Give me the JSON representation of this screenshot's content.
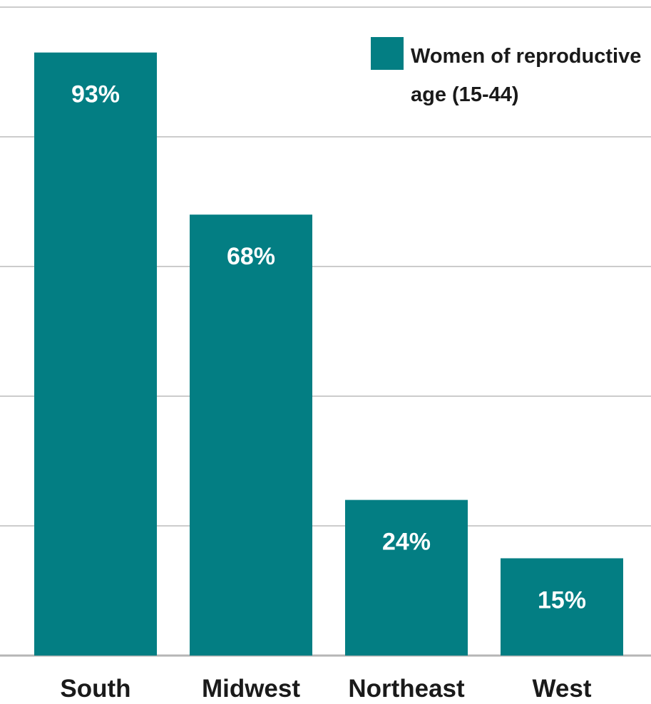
{
  "chart_data": {
    "type": "bar",
    "categories": [
      "South",
      "Midwest",
      "Northeast",
      "West"
    ],
    "series": [
      {
        "name": "Women of reproductive age (15-44)",
        "values": [
          93,
          68,
          24,
          15
        ],
        "value_labels": [
          "93%",
          "68%",
          "24%",
          "15%"
        ]
      }
    ],
    "legend": {
      "entry_lines": [
        "Women of reproductive",
        "age (15-44)"
      ],
      "position": "top-right"
    },
    "ylim": [
      0,
      100
    ],
    "grid": true,
    "colors": {
      "bar": "#037E83",
      "grid": "#cccccc",
      "baseline": "#b5b5b5",
      "value_label": "#ffffff",
      "category_label": "#1a1a1a"
    }
  }
}
